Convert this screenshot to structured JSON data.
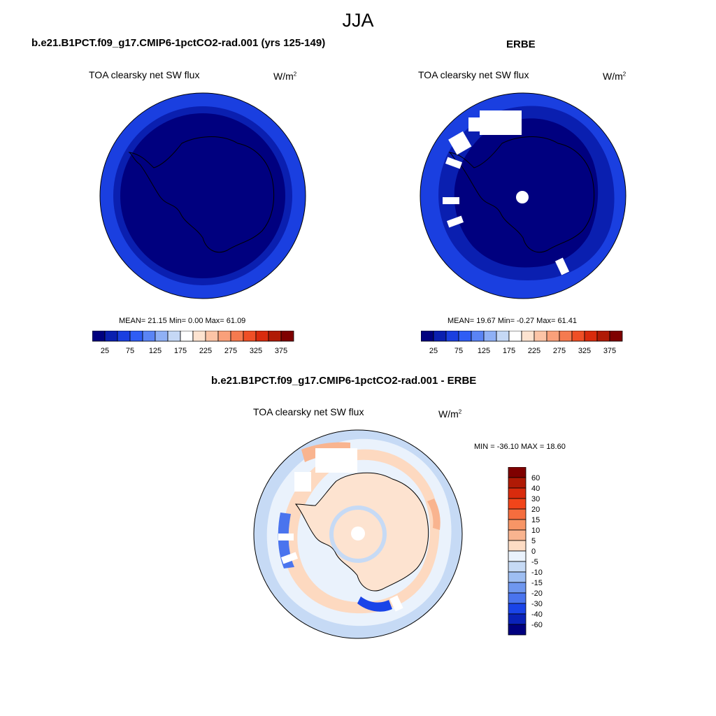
{
  "figure": {
    "title": "JJA"
  },
  "panels": {
    "model": {
      "title": "b.e21.B1PCT.f09_g17.CMIP6-1pctCO2-rad.001 (yrs 125-149)",
      "variable": "TOA clearsky net SW flux",
      "units_base": "W/m",
      "units_exp": "2",
      "stats": "MEAN=  21.15  Min=   0.00  Max=  61.09",
      "colorbar_labels": [
        "25",
        "75",
        "125",
        "175",
        "225",
        "275",
        "325",
        "375"
      ]
    },
    "obs": {
      "title": "ERBE",
      "variable": "TOA clearsky net SW flux",
      "units_base": "W/m",
      "units_exp": "2",
      "stats": "MEAN=  19.67  Min=  -0.27  Max=  61.41",
      "colorbar_labels": [
        "25",
        "75",
        "125",
        "175",
        "225",
        "275",
        "325",
        "375"
      ]
    },
    "diff": {
      "title": "b.e21.B1PCT.f09_g17.CMIP6-1pctCO2-rad.001 - ERBE",
      "variable": "TOA clearsky net SW flux",
      "units_base": "W/m",
      "units_exp": "2",
      "stats": "MIN = -36.10 MAX =  18.60",
      "colorbar_labels": [
        "60",
        "40",
        "30",
        "20",
        "15",
        "10",
        "5",
        "0",
        "-5",
        "-10",
        "-15",
        "-20",
        "-30",
        "-40",
        "-60"
      ]
    }
  },
  "colors": {
    "abs_scale": [
      "#00007f",
      "#0a1fb0",
      "#1a3fe0",
      "#2f5df5",
      "#5a84f5",
      "#8fb0f5",
      "#c5d8f5",
      "#ffffff",
      "#fde3d0",
      "#fcc4a6",
      "#f9a07a",
      "#f57a4f",
      "#ef4f26",
      "#d92b0d",
      "#b01a05",
      "#7f0000"
    ],
    "diff_scale": [
      "#7f0000",
      "#b01a05",
      "#d92b0d",
      "#f2451a",
      "#f56d3e",
      "#f79566",
      "#f9b48f",
      "#fddcc4",
      "#eaf2fc",
      "#c6daf5",
      "#9ebef2",
      "#6f97ef",
      "#4a74ee",
      "#1a44e8",
      "#0a22b8",
      "#00007f"
    ]
  }
}
